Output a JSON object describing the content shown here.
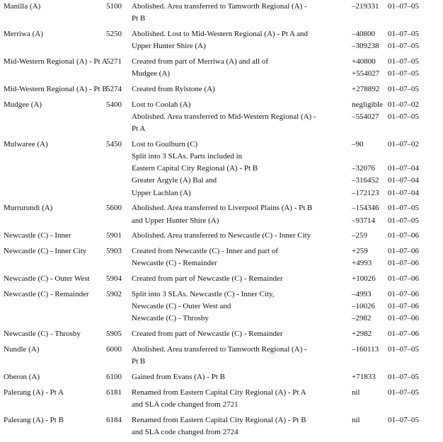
{
  "rows": [
    {
      "name": "Manilla (A)",
      "code": "5100",
      "lines": [
        {
          "desc": "Abolished. Area transferred to Tamworth Regional (A) -",
          "value": "–219331",
          "date": "01–07–05"
        },
        {
          "desc": "Pt B",
          "value": "",
          "date": ""
        }
      ]
    },
    {
      "name": "Merriwa (A)",
      "code": "5250",
      "lines": [
        {
          "desc": "Abolished. Lost to Mid-Western Regional (A) - Pt A  and",
          "value": "–40800",
          "date": "01–07–05"
        },
        {
          "desc": "Upper Hunter Shire (A)",
          "value": "–309238",
          "date": "01–07–05"
        }
      ]
    },
    {
      "name": "Mid-Western Regional (A) - Pt A",
      "code": "5271",
      "lines": [
        {
          "desc": "Created from part of Merriwa (A) and all of",
          "value": "+40800",
          "date": "01–07–05"
        },
        {
          "desc": "Mudgee (A)",
          "value": "+554027",
          "date": "01–07–05"
        }
      ]
    },
    {
      "name": "Mid-Western Regional (A) - Pt B",
      "code": "5274",
      "lines": [
        {
          "desc": "Created from Rylstone (A)",
          "value": "+278892",
          "date": "01–07–05"
        }
      ]
    },
    {
      "name": "Mudgee (A)",
      "code": "5400",
      "lines": [
        {
          "desc": "Lost to Coolah (A)",
          "value": "negligible",
          "date": "01–07–02"
        },
        {
          "desc": "Abolished. Area transferred to Mid-Western Regional (A) -",
          "value": "–554027",
          "date": "01–07–05"
        },
        {
          "desc": "Pt A",
          "value": "",
          "date": ""
        }
      ]
    },
    {
      "name": "Mulwaree (A)",
      "code": "5450",
      "lines": [
        {
          "desc": "Lost to Goulburn (C)",
          "value": "–90",
          "date": "01–07–02"
        },
        {
          "desc": "Split into 3 SLAs. Parts included in",
          "value": "",
          "date": ""
        },
        {
          "desc": "Eastern Capital City Regional (A) - Pt B",
          "value": "–32076",
          "date": "01–07–04"
        },
        {
          "desc": "Greater Argyle (A) Bal and",
          "value": "–316452",
          "date": "01–07–04"
        },
        {
          "desc": "Upper Lachlan (A)",
          "value": "–172123",
          "date": "01–07–04"
        }
      ]
    },
    {
      "name": "Murrurundi (A)",
      "code": "5600",
      "lines": [
        {
          "desc": "Abolished. Area transferred to Liverpool Plains (A) - Pt B",
          "value": "–154346",
          "date": "01–07–05"
        },
        {
          "desc": "and Upper Hunter Shire (A)",
          "value": "–93714",
          "date": "01–07–05"
        }
      ]
    },
    {
      "name": "Newcastle (C) - Inner",
      "code": "5901",
      "lines": [
        {
          "desc": "Abolished. Area transferred to Newcastle (C) - Inner City",
          "value": "–259",
          "date": "01–07–06"
        }
      ]
    },
    {
      "name": "Newcastle (C) - Inner City",
      "code": "5903",
      "lines": [
        {
          "desc": "Created from Newcastle (C) - Inner and part of",
          "value": "+259",
          "date": "01–07–06"
        },
        {
          "desc": "Newcastle (C) - Remainder",
          "value": "+4993",
          "date": "01–07–06"
        }
      ]
    },
    {
      "name": "Newcastle (C) - Outer West",
      "code": "5904",
      "lines": [
        {
          "desc": "Created from part of  Newcastle (C) - Remainder",
          "value": "+10026",
          "date": "01–07–06"
        }
      ]
    },
    {
      "name": "Newcastle (C) - Remainder",
      "code": "5902",
      "lines": [
        {
          "desc": "Split into 3 SLAs. Newcastle (C) - Inner City,",
          "value": "–4993",
          "date": "01–07–06"
        },
        {
          "desc": "Newcastle (C) - Outer West and",
          "value": "–10026",
          "date": "01–07–06"
        },
        {
          "desc": "Newcastle (C) - Throsby",
          "value": "–2982",
          "date": "01–07–06"
        }
      ]
    },
    {
      "name": "Newcastle (C) - Throsby",
      "code": "5905",
      "lines": [
        {
          "desc": "Created from part of  Newcastle (C) - Remainder",
          "value": "+2982",
          "date": "01–07–06"
        }
      ]
    },
    {
      "name": "Nundle (A)",
      "code": "6000",
      "lines": [
        {
          "desc": "Abolished. Area transferred to Tamworth Regional (A) -",
          "value": "–160113",
          "date": "01–07–05"
        },
        {
          "desc": "Pt B",
          "value": "",
          "date": ""
        }
      ]
    },
    {
      "name": "Oberon (A)",
      "code": "6100",
      "lines": [
        {
          "desc": "Gained from Evans (A) - Pt B",
          "value": "+71833",
          "date": "01–07–05"
        }
      ]
    },
    {
      "name": "Palerang (A) - Pt A",
      "code": "6181",
      "lines": [
        {
          "desc": "Renamed from Eastern Capital City Regional (A) - Pt A",
          "value": "nil",
          "date": "01–07–05"
        },
        {
          "desc": "and SLA code changed from 2721",
          "value": "",
          "date": ""
        }
      ]
    },
    {
      "name": "Palerang (A) - Pt B",
      "code": "6184",
      "lines": [
        {
          "desc": "Renamed from Eastern Capital City Regional (A) - Pt B",
          "value": "nil",
          "date": "01–07–05"
        },
        {
          "desc": "and SLA code changed from 2724",
          "value": "",
          "date": ""
        }
      ]
    }
  ]
}
